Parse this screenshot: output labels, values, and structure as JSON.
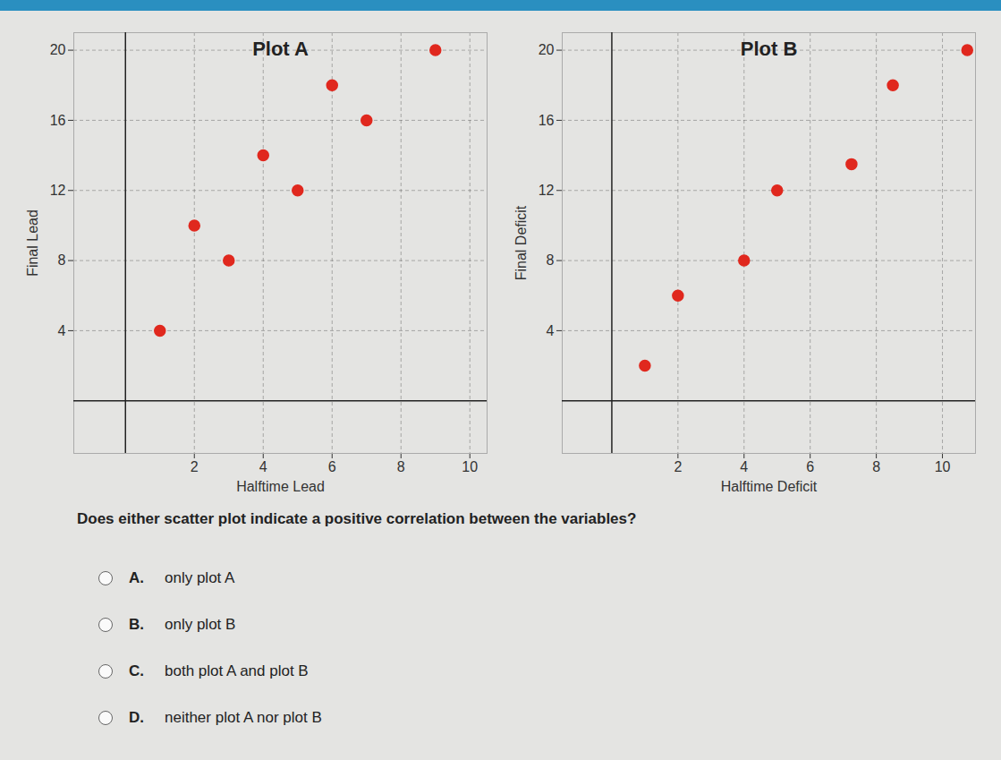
{
  "chart_data": [
    {
      "type": "scatter",
      "title": "Plot A",
      "x_label": "Halftime Lead",
      "y_label": "Final Lead",
      "x": [
        1,
        2,
        3,
        4,
        5,
        6,
        7,
        9
      ],
      "values": [
        4,
        10,
        8,
        14,
        12,
        18,
        16,
        20
      ],
      "color": "#e0281e",
      "marker": "circle",
      "xlim": [
        -1.5,
        10.5
      ],
      "ylim": [
        -3,
        21
      ],
      "xticks": [
        2,
        4,
        6,
        8,
        10
      ],
      "yticks": [
        4,
        8,
        12,
        16,
        20
      ],
      "grid": true
    },
    {
      "type": "scatter",
      "title": "Plot B",
      "x_label": "Halftime Deficit",
      "y_label": "Final Deficit",
      "x": [
        1,
        2,
        4,
        5,
        7.25,
        8.5,
        10.75
      ],
      "values": [
        2,
        6,
        8,
        12,
        13.5,
        18,
        20
      ],
      "color": "#e0281e",
      "marker": "circle",
      "xlim": [
        -1.5,
        11
      ],
      "ylim": [
        -3,
        21
      ],
      "xticks": [
        2,
        4,
        6,
        8,
        10
      ],
      "yticks": [
        4,
        8,
        12,
        16,
        20
      ],
      "grid": true
    }
  ],
  "question": "Does either scatter plot indicate a positive correlation between the variables?",
  "options": [
    {
      "letter": "A.",
      "text": "only plot A"
    },
    {
      "letter": "B.",
      "text": "only plot B"
    },
    {
      "letter": "C.",
      "text": "both plot A and plot B"
    },
    {
      "letter": "D.",
      "text": "neither plot A nor plot B"
    }
  ]
}
